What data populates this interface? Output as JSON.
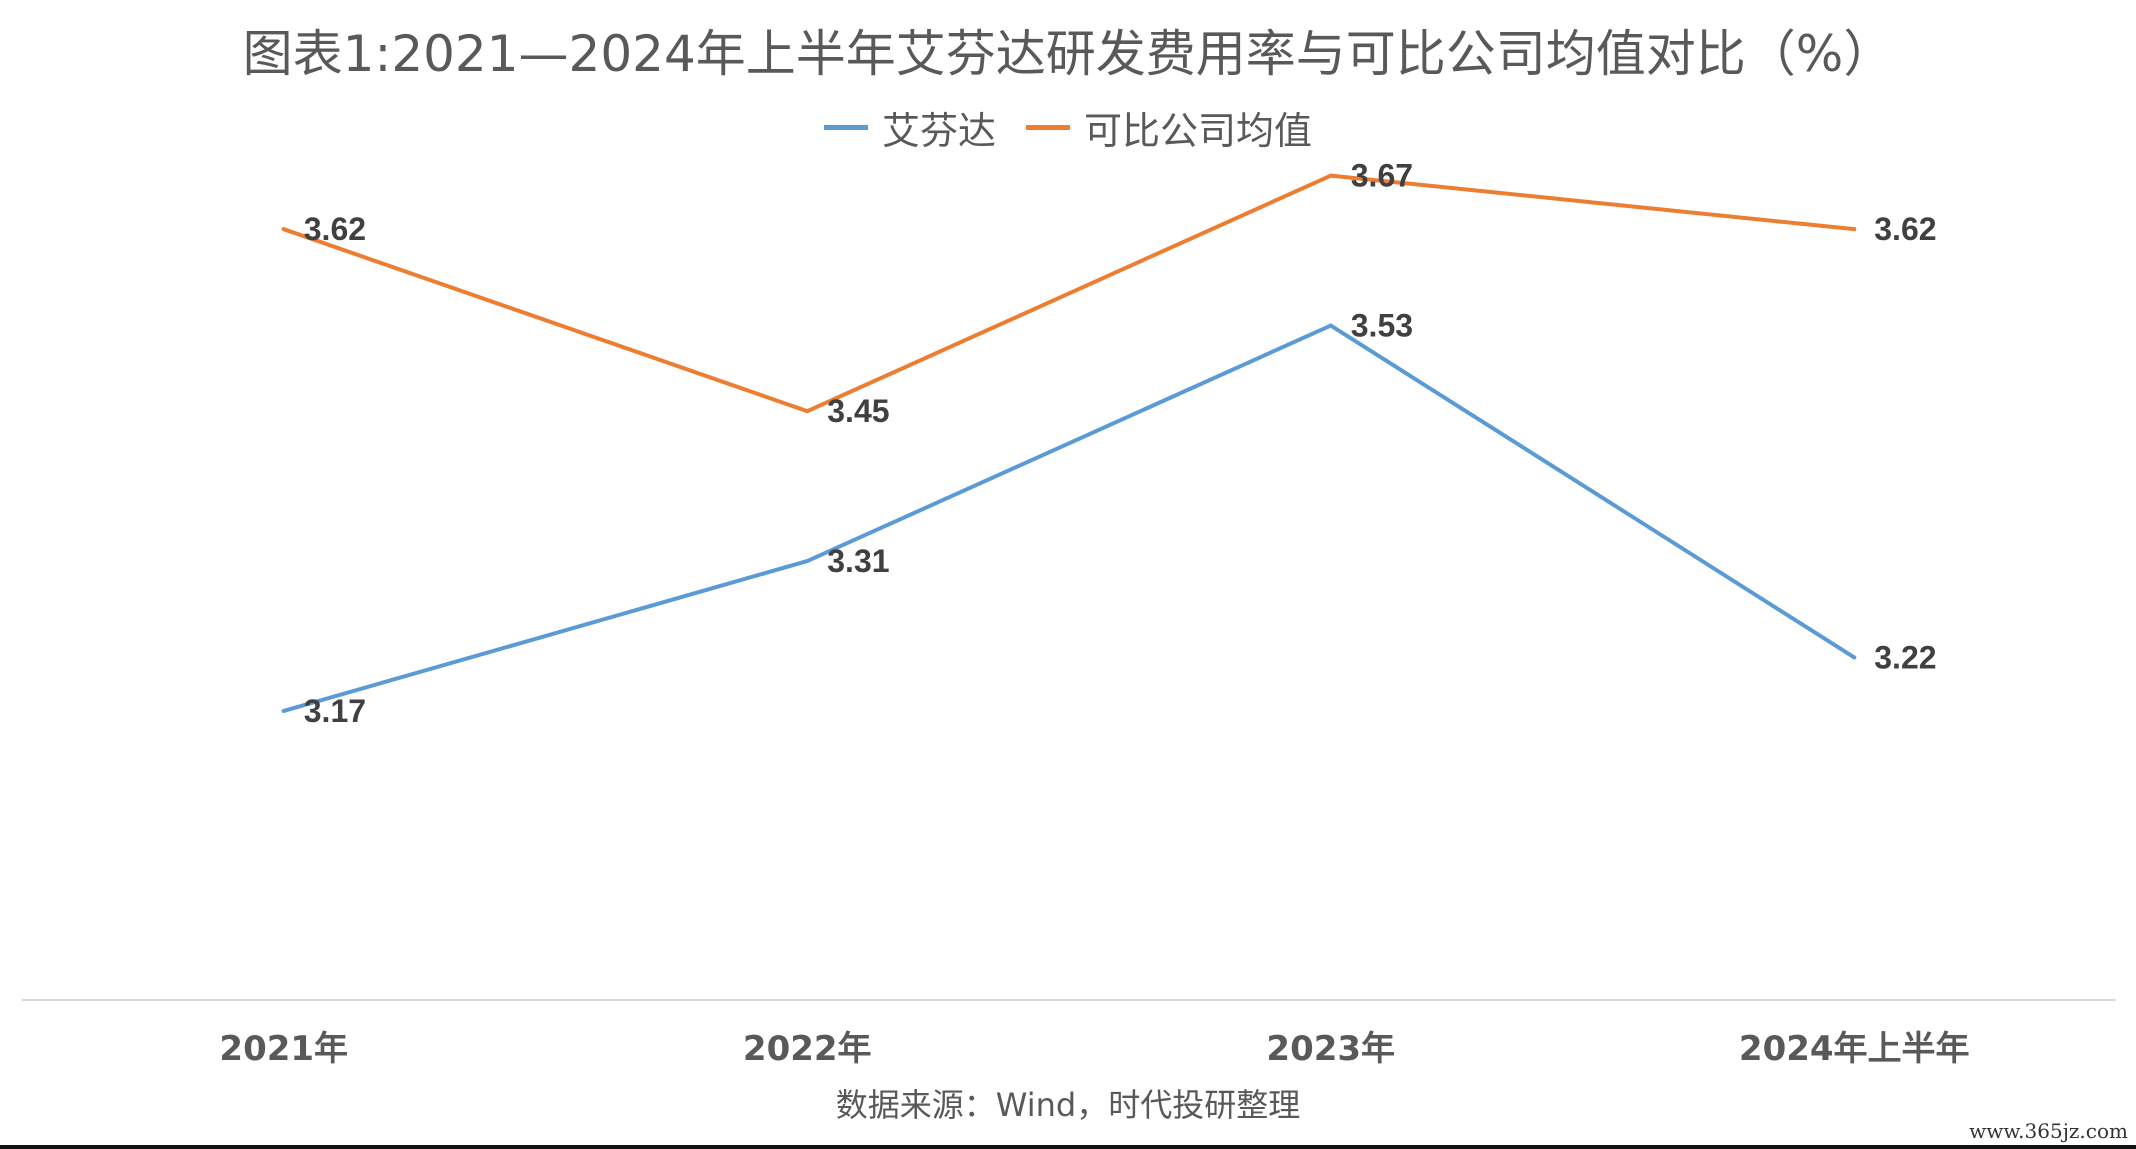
{
  "chart_data": {
    "type": "line",
    "title": "图表1:2021—2024年上半年艾芬达研发费用率与可比公司均值对比（%）",
    "categories": [
      "2021年",
      "2022年",
      "2023年",
      "2024年上半年"
    ],
    "series": [
      {
        "name": "艾芬达",
        "values": [
          3.17,
          3.31,
          3.53,
          3.22
        ],
        "color": "#5B9BD5"
      },
      {
        "name": "可比公司均值",
        "values": [
          3.62,
          3.45,
          3.67,
          3.62
        ],
        "color": "#ED7D31"
      }
    ],
    "xlabel": "",
    "ylabel": "",
    "ylim": [
      2.9,
      3.75
    ],
    "grid": false,
    "legend": "top"
  },
  "source_note": "数据来源：Wind，时代投研整理",
  "watermark": "www.365jz.com",
  "colors": {
    "axis": "#D9D9D9",
    "text": "#595959",
    "label": "#404040"
  }
}
